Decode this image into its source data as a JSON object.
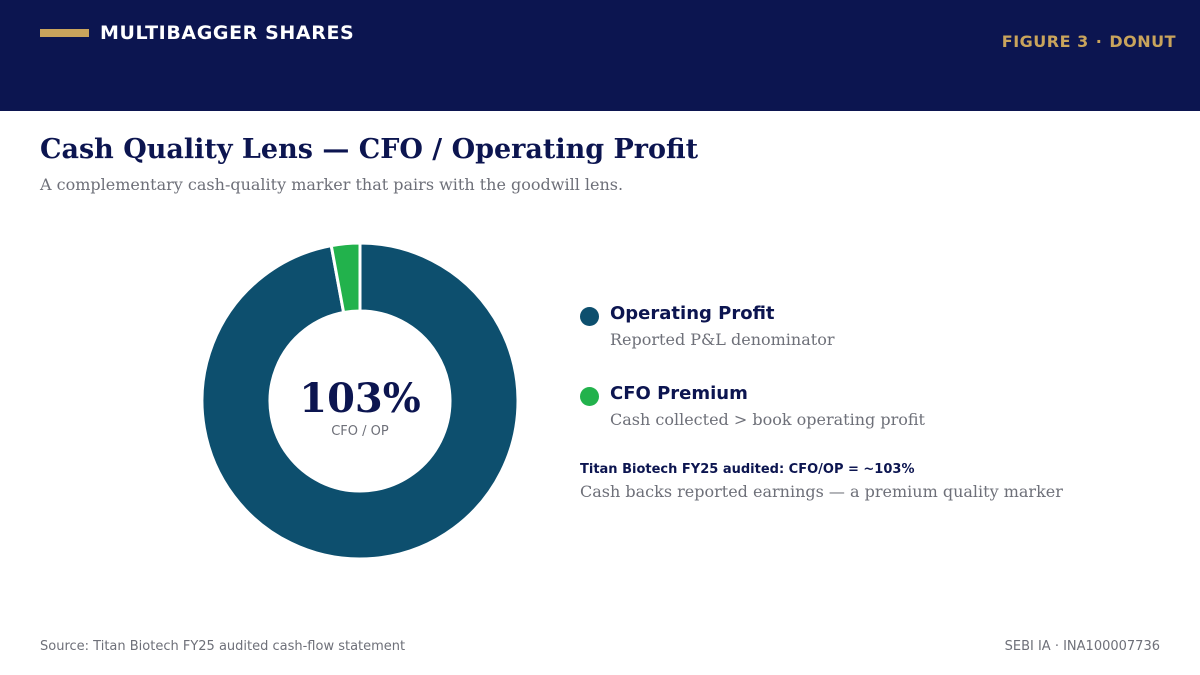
{
  "header": {
    "brand": "MULTIBAGGER SHARES",
    "figure_label": "FIGURE 3",
    "figure_sep": "·",
    "figure_type": "DONUT"
  },
  "title": "Cash Quality Lens — CFO / Operating Profit",
  "subtitle": "A complementary cash-quality marker that pairs with the goodwill lens.",
  "center": {
    "value": "103%",
    "label": "CFO / OP"
  },
  "legend": [
    {
      "title": "Operating Profit",
      "desc": "Reported P&L denominator",
      "color": "#0d4f6e"
    },
    {
      "title": "CFO Premium",
      "desc": "Cash collected > book operating profit",
      "color": "#22b24c"
    }
  ],
  "note": {
    "title": "Titan Biotech FY25 audited: CFO/OP = ~103%",
    "desc": "Cash backs reported earnings — a premium quality marker"
  },
  "footer": {
    "source": "Source: Titan Biotech FY25 audited cash-flow statement",
    "registration": "SEBI IA · INA100007736"
  },
  "chart_data": {
    "type": "pie",
    "donut": true,
    "slices": [
      {
        "name": "Operating Profit",
        "value": 100,
        "color": "#0d4f6e"
      },
      {
        "name": "CFO Premium",
        "value": 3,
        "color": "#22b24c"
      }
    ],
    "center_value": "103%",
    "center_label": "CFO / OP"
  },
  "colors": {
    "header_bg": "#0c1550",
    "accent": "#c9a45c",
    "title": "#0c1550",
    "muted": "#6e7079"
  }
}
